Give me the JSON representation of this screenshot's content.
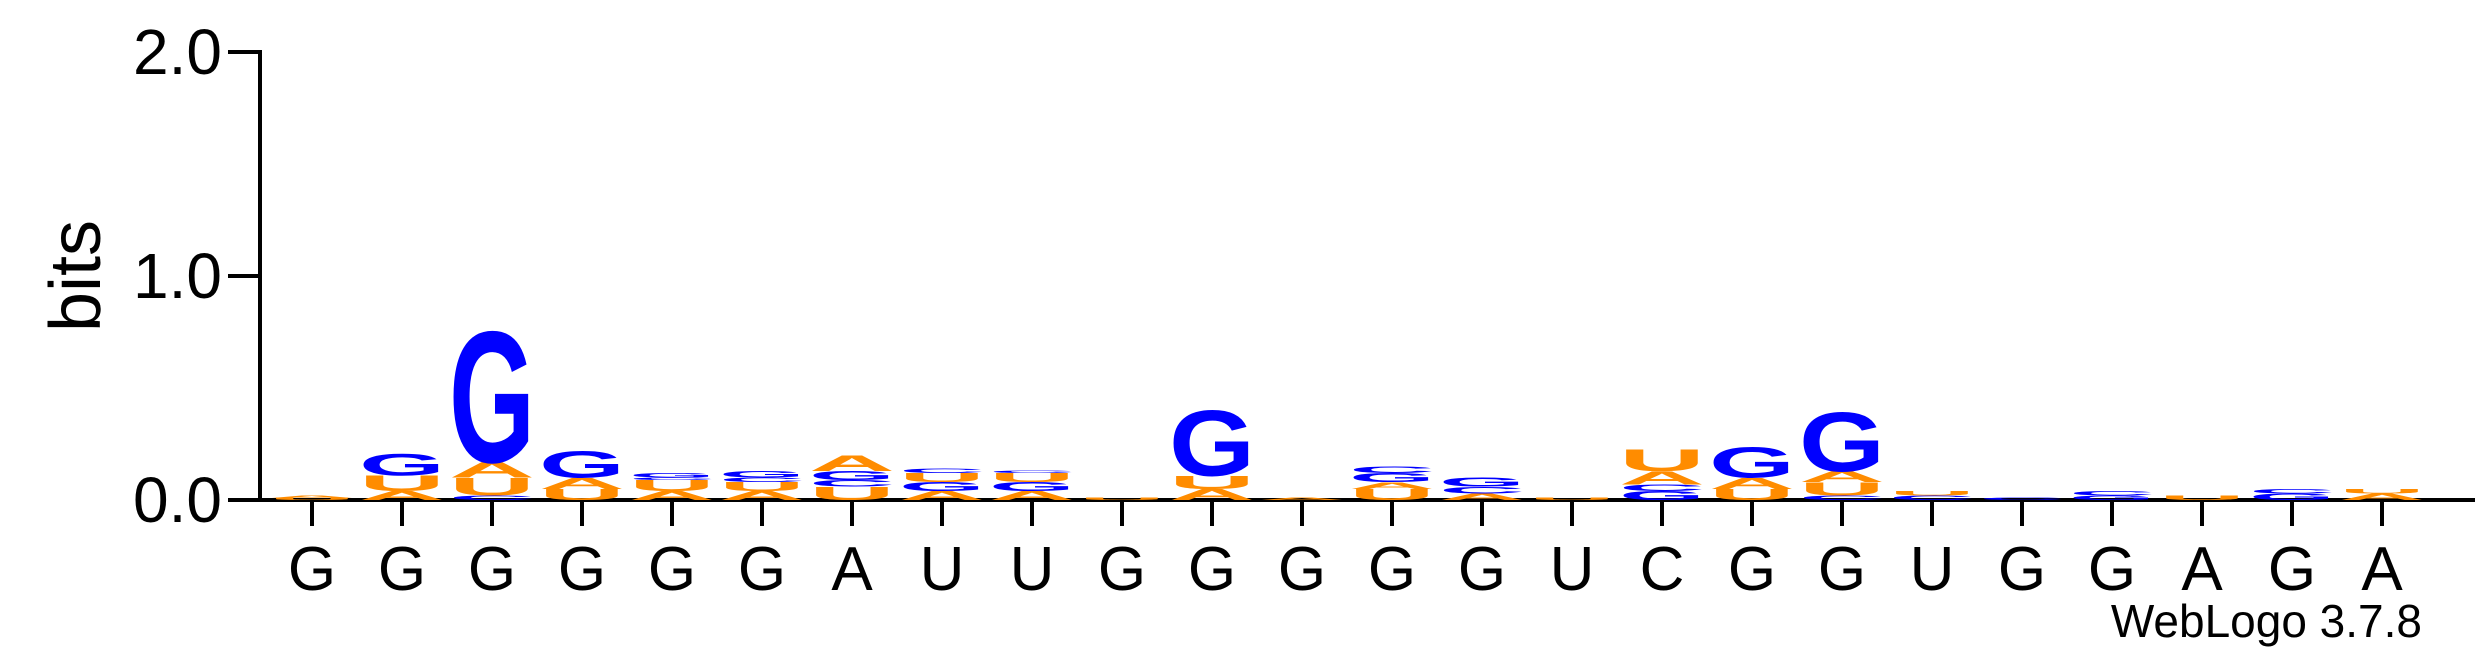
{
  "chart_data": {
    "type": "logo",
    "ylabel": "bits",
    "footer": "WebLogo 3.7.8",
    "ylim": [
      0,
      2
    ],
    "yticks": [
      {
        "value": 0,
        "label": "0.0"
      },
      {
        "value": 1,
        "label": "1.0"
      },
      {
        "value": 2,
        "label": "2.0"
      }
    ],
    "colors": {
      "A": "#ff8c00",
      "U": "#ff8c00",
      "G": "#0000ff",
      "C": "#0000ff"
    },
    "categories": [
      "G",
      "G",
      "G",
      "G",
      "G",
      "G",
      "A",
      "U",
      "U",
      "G",
      "G",
      "G",
      "G",
      "G",
      "U",
      "C",
      "G",
      "G",
      "U",
      "G",
      "G",
      "A",
      "G",
      "A"
    ],
    "positions": [
      {
        "letters": [
          "U",
          "A"
        ],
        "heights": [
          0.01,
          0.01
        ]
      },
      {
        "letters": [
          "A",
          "U",
          "G"
        ],
        "heights": [
          0.04,
          0.07,
          0.1
        ]
      },
      {
        "letters": [
          "C",
          "U",
          "A",
          "G"
        ],
        "heights": [
          0.02,
          0.08,
          0.07,
          0.6
        ]
      },
      {
        "letters": [
          "U",
          "A",
          "G"
        ],
        "heights": [
          0.05,
          0.05,
          0.12
        ]
      },
      {
        "letters": [
          "A",
          "U",
          "C",
          "G"
        ],
        "heights": [
          0.04,
          0.05,
          0.01,
          0.02
        ]
      },
      {
        "letters": [
          "A",
          "U",
          "C",
          "G"
        ],
        "heights": [
          0.04,
          0.04,
          0.02,
          0.03
        ]
      },
      {
        "letters": [
          "U",
          "C",
          "G",
          "A"
        ],
        "heights": [
          0.06,
          0.03,
          0.04,
          0.07
        ]
      },
      {
        "letters": [
          "A",
          "G",
          "U",
          "C"
        ],
        "heights": [
          0.04,
          0.04,
          0.04,
          0.02
        ]
      },
      {
        "letters": [
          "A",
          "G",
          "U",
          "C"
        ],
        "heights": [
          0.04,
          0.04,
          0.04,
          0.01
        ]
      },
      {
        "letters": [
          "U"
        ],
        "heights": [
          0.01
        ]
      },
      {
        "letters": [
          "A",
          "U",
          "G"
        ],
        "heights": [
          0.05,
          0.06,
          0.3
        ]
      },
      {
        "letters": [
          "A"
        ],
        "heights": [
          0.01
        ]
      },
      {
        "letters": [
          "U",
          "A",
          "G",
          "C"
        ],
        "heights": [
          0.05,
          0.03,
          0.04,
          0.03
        ]
      },
      {
        "letters": [
          "A",
          "C",
          "G"
        ],
        "heights": [
          0.03,
          0.03,
          0.04
        ]
      },
      {
        "letters": [
          "U"
        ],
        "heights": [
          0.01
        ]
      },
      {
        "letters": [
          "G",
          "C",
          "A",
          "U"
        ],
        "heights": [
          0.04,
          0.03,
          0.06,
          0.1
        ]
      },
      {
        "letters": [
          "U",
          "A",
          "G"
        ],
        "heights": [
          0.05,
          0.05,
          0.14
        ]
      },
      {
        "letters": [
          "C",
          "U",
          "A",
          "G"
        ],
        "heights": [
          0.02,
          0.06,
          0.05,
          0.27
        ]
      },
      {
        "letters": [
          "C",
          "U"
        ],
        "heights": [
          0.02,
          0.02
        ]
      },
      {
        "letters": [
          "C"
        ],
        "heights": [
          0.01
        ]
      },
      {
        "letters": [
          "G",
          "C"
        ],
        "heights": [
          0.02,
          0.02
        ]
      },
      {
        "letters": [
          "U"
        ],
        "heights": [
          0.02
        ]
      },
      {
        "letters": [
          "G",
          "C"
        ],
        "heights": [
          0.03,
          0.02
        ]
      },
      {
        "letters": [
          "A",
          "U"
        ],
        "heights": [
          0.03,
          0.02
        ]
      }
    ]
  }
}
